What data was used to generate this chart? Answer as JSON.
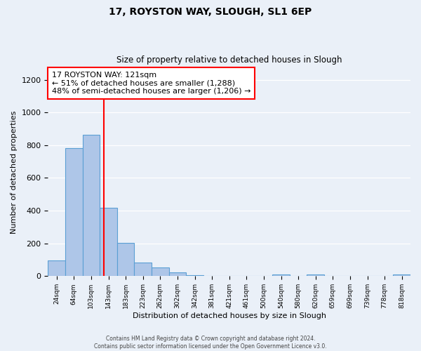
{
  "title": "17, ROYSTON WAY, SLOUGH, SL1 6EP",
  "subtitle": "Size of property relative to detached houses in Slough",
  "xlabel": "Distribution of detached houses by size in Slough",
  "ylabel": "Number of detached properties",
  "bar_labels": [
    "24sqm",
    "64sqm",
    "103sqm",
    "143sqm",
    "183sqm",
    "223sqm",
    "262sqm",
    "302sqm",
    "342sqm",
    "381sqm",
    "421sqm",
    "461sqm",
    "500sqm",
    "540sqm",
    "580sqm",
    "620sqm",
    "659sqm",
    "699sqm",
    "739sqm",
    "778sqm",
    "818sqm"
  ],
  "bar_values": [
    95,
    783,
    863,
    418,
    202,
    85,
    52,
    22,
    5,
    3,
    2,
    0,
    0,
    8,
    0,
    12,
    0,
    0,
    0,
    0,
    12
  ],
  "bar_color": "#aec6e8",
  "bar_edge_color": "#5a9fd4",
  "vline_x": 2.75,
  "vline_color": "red",
  "annotation_text": "17 ROYSTON WAY: 121sqm\n← 51% of detached houses are smaller (1,288)\n48% of semi-detached houses are larger (1,206) →",
  "annotation_box_color": "white",
  "annotation_box_edge_color": "red",
  "footer_line1": "Contains HM Land Registry data © Crown copyright and database right 2024.",
  "footer_line2": "Contains public sector information licensed under the Open Government Licence v3.0.",
  "ylim": [
    0,
    1270
  ],
  "background_color": "#eaf0f8",
  "axes_background_color": "#eaf0f8"
}
